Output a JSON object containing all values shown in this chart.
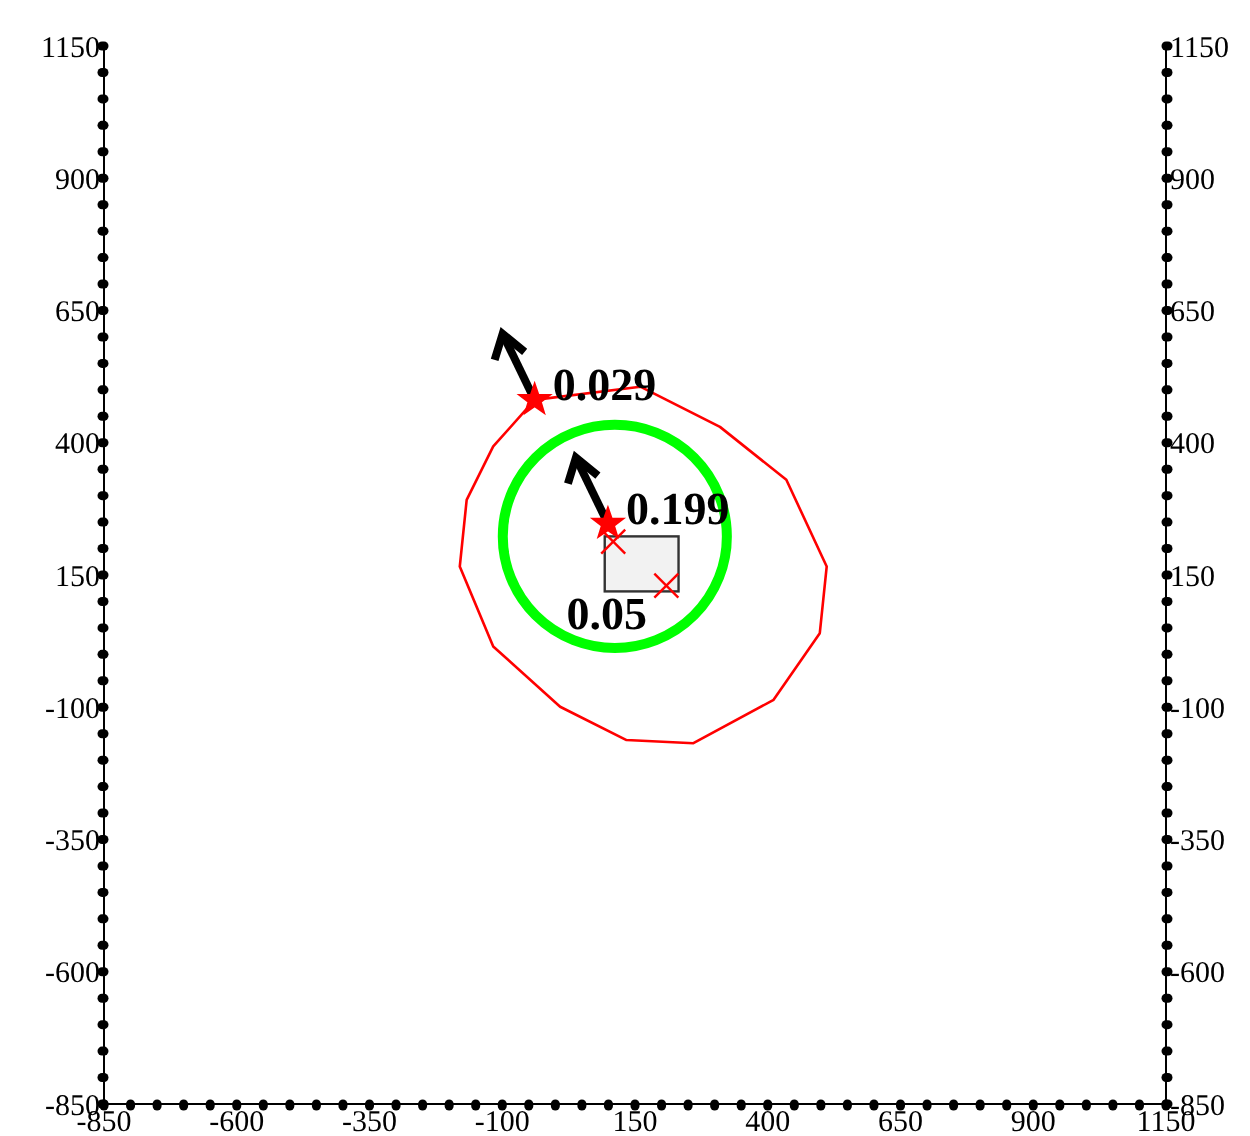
{
  "chart_data": {
    "type": "scatter",
    "xlim": [
      -850,
      1150
    ],
    "xticks": [
      -850,
      {
        "value": -800,
        "label": null
      },
      {
        "value": -750,
        "label": null
      },
      {
        "value": -700,
        "label": null
      },
      {
        "value": -650,
        "label": null
      },
      -600,
      {
        "value": -550,
        "label": null
      },
      {
        "value": -500,
        "label": null
      },
      {
        "value": -450,
        "label": null
      },
      {
        "value": -400,
        "label": null
      },
      -350,
      {
        "value": -300,
        "label": null
      },
      {
        "value": -250,
        "label": null
      },
      {
        "value": -200,
        "label": null
      },
      {
        "value": -150,
        "label": null
      },
      -100,
      {
        "value": -50,
        "label": null
      },
      {
        "value": 0,
        "label": null
      },
      {
        "value": 50,
        "label": null
      },
      {
        "value": 100,
        "label": null
      },
      150,
      {
        "value": 200,
        "label": null
      },
      {
        "value": 250,
        "label": null
      },
      {
        "value": 300,
        "label": null
      },
      {
        "value": 350,
        "label": null
      },
      400,
      {
        "value": 450,
        "label": null
      },
      {
        "value": 500,
        "label": null
      },
      {
        "value": 550,
        "label": null
      },
      {
        "value": 600,
        "label": null
      },
      650,
      {
        "value": 700,
        "label": null
      },
      {
        "value": 750,
        "label": null
      },
      {
        "value": 800,
        "label": null
      },
      {
        "value": 850,
        "label": null
      },
      900,
      {
        "value": 950,
        "label": null
      },
      {
        "value": 1000,
        "label": null
      },
      {
        "value": 1050,
        "label": null
      },
      {
        "value": 1100,
        "label": null
      },
      1150
    ],
    "ylim": [
      -850,
      1150
    ],
    "yticks": [
      -850,
      {
        "value": -800,
        "label": null
      },
      {
        "value": -750,
        "label": null
      },
      {
        "value": -700,
        "label": null
      },
      {
        "value": -650,
        "label": null
      },
      -600,
      {
        "value": -550,
        "label": null
      },
      {
        "value": -500,
        "label": null
      },
      {
        "value": -450,
        "label": null
      },
      {
        "value": -400,
        "label": null
      },
      -350,
      {
        "value": -300,
        "label": null
      },
      {
        "value": -250,
        "label": null
      },
      {
        "value": -200,
        "label": null
      },
      {
        "value": -150,
        "label": null
      },
      -100,
      {
        "value": -50,
        "label": null
      },
      {
        "value": 0,
        "label": null
      },
      {
        "value": 50,
        "label": null
      },
      {
        "value": 100,
        "label": null
      },
      150,
      {
        "value": 200,
        "label": null
      },
      {
        "value": 250,
        "label": null
      },
      {
        "value": 300,
        "label": null
      },
      {
        "value": 350,
        "label": null
      },
      400,
      {
        "value": 450,
        "label": null
      },
      {
        "value": 500,
        "label": null
      },
      {
        "value": 550,
        "label": null
      },
      {
        "value": 600,
        "label": null
      },
      650,
      {
        "value": 700,
        "label": null
      },
      {
        "value": 750,
        "label": null
      },
      {
        "value": 800,
        "label": null
      },
      {
        "value": 850,
        "label": null
      },
      900,
      {
        "value": 950,
        "label": null
      },
      {
        "value": 1000,
        "label": null
      },
      {
        "value": 1050,
        "label": null
      },
      {
        "value": 1100,
        "label": null
      },
      1150
    ],
    "y2lim": [
      -850,
      1150
    ],
    "y2ticks": [
      -850,
      {
        "value": -800,
        "label": null
      },
      {
        "value": -750,
        "label": null
      },
      {
        "value": -700,
        "label": null
      },
      {
        "value": -650,
        "label": null
      },
      -600,
      {
        "value": -550,
        "label": null
      },
      {
        "value": -500,
        "label": null
      },
      {
        "value": -450,
        "label": null
      },
      {
        "value": -400,
        "label": null
      },
      -350,
      {
        "value": -300,
        "label": null
      },
      {
        "value": -250,
        "label": null
      },
      {
        "value": -200,
        "label": null
      },
      {
        "value": -150,
        "label": null
      },
      -100,
      {
        "value": -50,
        "label": null
      },
      {
        "value": 0,
        "label": null
      },
      {
        "value": 50,
        "label": null
      },
      {
        "value": 100,
        "label": null
      },
      150,
      {
        "value": 200,
        "label": null
      },
      {
        "value": 250,
        "label": null
      },
      {
        "value": 300,
        "label": null
      },
      {
        "value": 350,
        "label": null
      },
      400,
      {
        "value": 450,
        "label": null
      },
      {
        "value": 500,
        "label": null
      },
      {
        "value": 550,
        "label": null
      },
      {
        "value": 600,
        "label": null
      },
      650,
      {
        "value": 700,
        "label": null
      },
      {
        "value": 750,
        "label": null
      },
      {
        "value": 800,
        "label": null
      },
      {
        "value": 850,
        "label": null
      },
      900,
      {
        "value": 950,
        "label": null
      },
      {
        "value": 1000,
        "label": null
      },
      {
        "value": 1050,
        "label": null
      },
      {
        "value": 1100,
        "label": null
      },
      1150
    ],
    "series": [
      {
        "color": "#ff0000",
        "marker": "star",
        "x": [
          -39,
          99
        ],
        "values": [
          481,
          247
        ]
      },
      {
        "color": "#ff0000",
        "marker": "cross",
        "x": [
          109,
          209
        ],
        "values": [
          213,
          130
        ]
      }
    ],
    "annotations": [
      "0.029",
      "0.199",
      "0.05"
    ]
  }
}
